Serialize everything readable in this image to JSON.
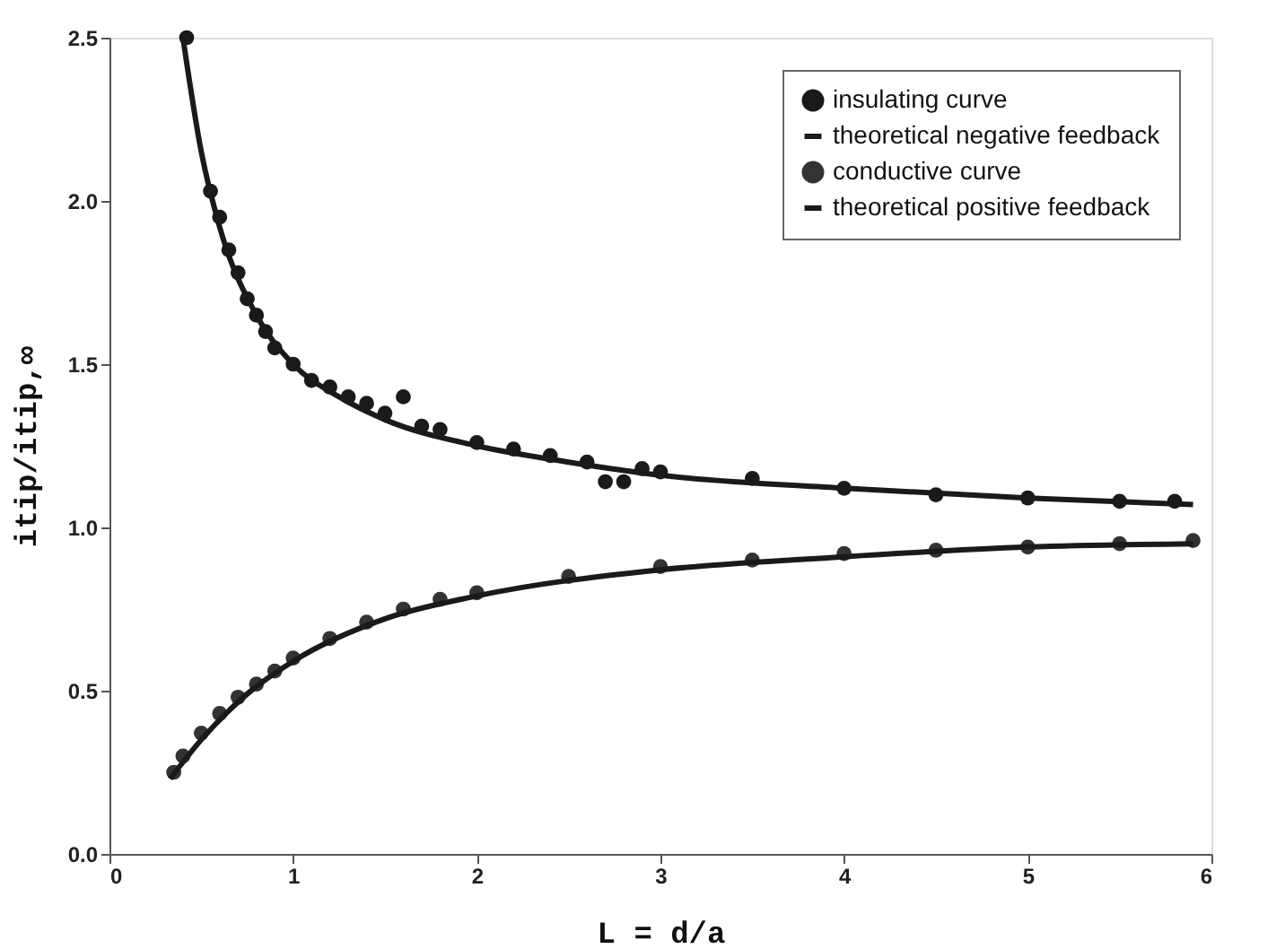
{
  "chart_data": {
    "type": "scatter",
    "xlabel": "L = d/a",
    "ylabel": "itip/itip,∞",
    "xlim": [
      0,
      6
    ],
    "ylim": [
      0,
      2.5
    ],
    "xticks": [
      0,
      1,
      2,
      3,
      4,
      5,
      6
    ],
    "yticks": [
      {
        "value": 0,
        "label": "0.0"
      },
      {
        "value": 0.5,
        "label": "0.5"
      },
      {
        "value": 1,
        "label": "1.0"
      },
      {
        "value": 1.5,
        "label": "1.5"
      },
      {
        "value": 2,
        "label": "2.0"
      },
      {
        "value": 2.5,
        "label": "2.5"
      }
    ],
    "grid": false,
    "legend": "top right",
    "series": [
      {
        "name": "insulating curve",
        "marker": "circle",
        "color": "#1a1a1a",
        "x": [
          0.42,
          0.55,
          0.6,
          0.65,
          0.7,
          0.75,
          0.8,
          0.85,
          0.9,
          1.0,
          1.1,
          1.2,
          1.3,
          1.4,
          1.5,
          1.6,
          1.7,
          1.8,
          2.0,
          2.2,
          2.4,
          2.6,
          2.7,
          2.8,
          2.9,
          3.0,
          3.5,
          4.0,
          4.5,
          5.0,
          5.5,
          5.8
        ],
        "values": [
          2.5,
          2.03,
          1.95,
          1.85,
          1.78,
          1.7,
          1.65,
          1.6,
          1.55,
          1.5,
          1.45,
          1.43,
          1.4,
          1.38,
          1.35,
          1.4,
          1.31,
          1.3,
          1.26,
          1.24,
          1.22,
          1.2,
          1.14,
          1.14,
          1.18,
          1.17,
          1.15,
          1.12,
          1.1,
          1.09,
          1.08,
          1.08
        ]
      },
      {
        "name": "theoretical negative feedback",
        "type": "line",
        "marker": "none",
        "color": "#1a1a1a",
        "x": [
          0.4,
          0.5,
          0.6,
          0.8,
          1.0,
          1.25,
          1.5,
          2.0,
          2.5,
          3.0,
          4.0,
          5.0,
          5.9
        ],
        "values": [
          2.5,
          2.15,
          1.92,
          1.65,
          1.5,
          1.4,
          1.33,
          1.25,
          1.2,
          1.16,
          1.12,
          1.09,
          1.07
        ]
      },
      {
        "name": "conductive curve",
        "marker": "circle",
        "color": "#333333",
        "x": [
          0.35,
          0.4,
          0.5,
          0.6,
          0.7,
          0.8,
          0.9,
          1.0,
          1.2,
          1.4,
          1.6,
          1.8,
          2.0,
          2.5,
          3.0,
          3.5,
          4.0,
          4.5,
          5.0,
          5.5,
          5.9
        ],
        "values": [
          0.25,
          0.3,
          0.37,
          0.43,
          0.48,
          0.52,
          0.56,
          0.6,
          0.66,
          0.71,
          0.75,
          0.78,
          0.8,
          0.85,
          0.88,
          0.9,
          0.92,
          0.93,
          0.94,
          0.95,
          0.96
        ]
      },
      {
        "name": "theoretical positive feedback",
        "type": "line",
        "marker": "none",
        "color": "#1a1a1a",
        "x": [
          0.33,
          0.5,
          0.75,
          1.0,
          1.5,
          2.0,
          3.0,
          4.0,
          5.0,
          5.9
        ],
        "values": [
          0.23,
          0.35,
          0.49,
          0.59,
          0.72,
          0.79,
          0.87,
          0.91,
          0.94,
          0.95
        ]
      }
    ]
  }
}
